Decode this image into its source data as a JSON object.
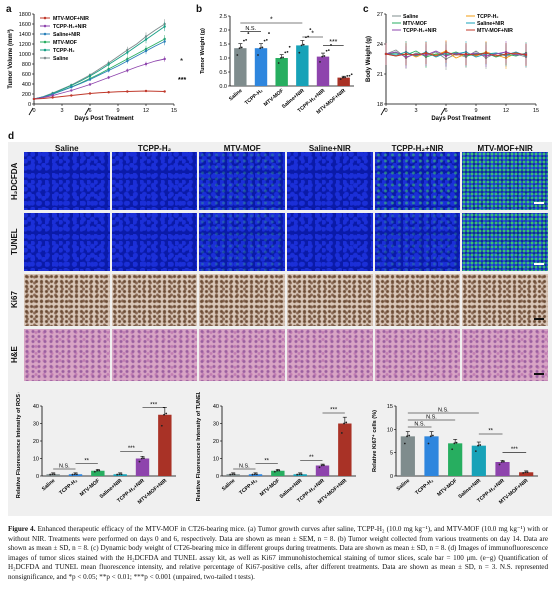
{
  "panels": {
    "a": "a",
    "b": "b",
    "c": "c",
    "d": "d",
    "e": "e",
    "f": "f",
    "g": "g"
  },
  "panel_a": {
    "ylabel": "Tumor Volume (mm³)",
    "xlabel": "Days Post Treatment",
    "yticks": [
      "0",
      "200",
      "400",
      "600",
      "800",
      "1000",
      "1200",
      "1400",
      "1600",
      "1800"
    ],
    "xticks": [
      "0",
      "3",
      "6",
      "9",
      "12",
      "15"
    ],
    "legend": [
      "MTV-MOF+NIR",
      "TCPP-H₂+NIR",
      "Saline+NIR",
      "MTV-MOF",
      "TCPP-H₂",
      "Saline"
    ],
    "sig": [
      "*",
      "***"
    ],
    "colors": [
      "#c0392b",
      "#8e44ad",
      "#2980b9",
      "#27ae60",
      "#16a085",
      "#7f8c8d"
    ]
  },
  "chart_data": [
    {
      "type": "line",
      "panel": "a",
      "x": [
        0,
        1,
        2,
        3,
        4,
        5,
        6,
        7,
        8,
        9,
        10,
        11,
        12,
        13,
        14
      ],
      "series": [
        {
          "name": "Saline",
          "values": [
            100,
            150,
            220,
            300,
            380,
            480,
            580,
            700,
            820,
            950,
            1080,
            1200,
            1350,
            1480,
            1600
          ]
        },
        {
          "name": "TCPP-H₂",
          "values": [
            100,
            145,
            210,
            290,
            370,
            460,
            560,
            670,
            790,
            910,
            1030,
            1160,
            1290,
            1420,
            1550
          ]
        },
        {
          "name": "MTV-MOF",
          "values": [
            100,
            140,
            200,
            270,
            340,
            420,
            510,
            600,
            700,
            800,
            900,
            1000,
            1100,
            1200,
            1300
          ]
        },
        {
          "name": "Saline+NIR",
          "values": [
            100,
            140,
            195,
            265,
            335,
            410,
            490,
            580,
            670,
            760,
            860,
            960,
            1060,
            1160,
            1250
          ]
        },
        {
          "name": "TCPP-H₂+NIR",
          "values": [
            100,
            130,
            170,
            220,
            270,
            330,
            390,
            460,
            530,
            600,
            670,
            740,
            800,
            860,
            900
          ]
        },
        {
          "name": "MTV-MOF+NIR",
          "values": [
            100,
            110,
            130,
            150,
            170,
            190,
            210,
            225,
            235,
            245,
            250,
            255,
            260,
            255,
            250
          ]
        }
      ],
      "ylim": [
        0,
        1800
      ],
      "xlim": [
        0,
        15
      ]
    },
    {
      "type": "bar",
      "panel": "b",
      "categories": [
        "Saline",
        "TCPP-H₂",
        "MTV-MOF",
        "Saline+NIR",
        "TCPP-H₂+NIR",
        "MTV-MOF+NIR"
      ],
      "values": [
        1.35,
        1.35,
        1.0,
        1.45,
        1.05,
        0.3
      ],
      "ylim": [
        0,
        2.5
      ]
    },
    {
      "type": "line",
      "panel": "c",
      "x": [
        0,
        1,
        2,
        3,
        4,
        5,
        6,
        7,
        8,
        9,
        10,
        11,
        12,
        13,
        14
      ],
      "series": [
        {
          "name": "Saline",
          "values": [
            23,
            23.4,
            22.6,
            23.1,
            22.8,
            23.2,
            22.5,
            23,
            22.7,
            23.3,
            22.6,
            23.1,
            22.8,
            23,
            22.7
          ]
        },
        {
          "name": "TCPP-H₂",
          "values": [
            23,
            22.8,
            23.2,
            22.7,
            23.1,
            22.9,
            23.3,
            22.6,
            23,
            22.8,
            23.2,
            22.9,
            22.6,
            23.1,
            22.9
          ]
        },
        {
          "name": "MTV-MOF",
          "values": [
            23,
            23.1,
            22.9,
            23.3,
            22.7,
            23,
            22.9,
            23.2,
            22.8,
            23,
            23.1,
            22.7,
            23,
            22.8,
            23.1
          ]
        },
        {
          "name": "Saline+NIR",
          "values": [
            23,
            22.9,
            23.2,
            22.8,
            23.2,
            22.7,
            23.1,
            23,
            23.2,
            22.7,
            23,
            23.1,
            22.9,
            23.2,
            22.8
          ]
        },
        {
          "name": "TCPP-H₂+NIR",
          "values": [
            23,
            23.2,
            22.7,
            23,
            22.9,
            23.3,
            22.8,
            23.1,
            22.9,
            23.1,
            22.8,
            23,
            23.2,
            22.9,
            23
          ]
        },
        {
          "name": "MTV-MOF+NIR",
          "values": [
            23,
            22.8,
            23,
            22.9,
            23.1,
            22.8,
            23.2,
            22.9,
            23,
            22.9,
            23.1,
            22.8,
            23,
            23.1,
            22.9
          ]
        }
      ],
      "ylim": [
        18,
        27
      ],
      "xlim": [
        0,
        15
      ]
    },
    {
      "type": "bar",
      "panel": "e",
      "categories": [
        "Saline",
        "TCPP-H₂",
        "MTV-MOF",
        "Saline+NIR",
        "TCPP-H₂+NIR",
        "MTV-MOF+NIR"
      ],
      "values": [
        1,
        1,
        3,
        1,
        10,
        35
      ],
      "ylim": [
        0,
        40
      ]
    },
    {
      "type": "bar",
      "panel": "f",
      "categories": [
        "Saline",
        "TCPP-H₂",
        "MTV-MOF",
        "Saline+NIR",
        "TCPP-H₂+NIR",
        "MTV-MOF+NIR"
      ],
      "values": [
        1,
        1,
        3,
        1,
        6,
        30
      ],
      "ylim": [
        0,
        40
      ]
    },
    {
      "type": "bar",
      "panel": "g",
      "categories": [
        "Saline",
        "TCPP-H₂",
        "MTV-MOF",
        "Saline+NIR",
        "TCPP-H₂+NIR",
        "MTV-MOF+NIR"
      ],
      "values": [
        8.5,
        8.5,
        7,
        6.5,
        3,
        0.8
      ],
      "ylim": [
        0,
        15
      ]
    }
  ],
  "panel_b": {
    "ylabel": "Tumor Weight (g)",
    "yticks": [
      "0.0",
      "0.5",
      "1.0",
      "1.5",
      "2.0",
      "2.5"
    ],
    "sig": [
      "N.S.",
      "*",
      "*",
      "***"
    ]
  },
  "panel_c": {
    "ylabel": "Body Weight (g)",
    "xlabel": "Days Post Treatment",
    "yticks": [
      "18",
      "21",
      "24",
      "27"
    ],
    "xticks": [
      "0",
      "3",
      "6",
      "9",
      "12",
      "15"
    ]
  },
  "panel_e": {
    "ylabel": "Relative Fluorescence Intensity of ROS (%)",
    "yticks": [
      "0",
      "10",
      "20",
      "30",
      "40"
    ],
    "sig": [
      "N.S.",
      "**",
      "***",
      "***"
    ]
  },
  "panel_f": {
    "ylabel": "Relative Fluorescence Intensity of TUNEL (%)",
    "yticks": [
      "0",
      "10",
      "20",
      "30",
      "40"
    ],
    "sig": [
      "N.S.",
      "**",
      "**",
      "***"
    ]
  },
  "panel_g": {
    "ylabel": "Relative Ki67⁺ cells (%)",
    "yticks": [
      "0",
      "5",
      "10",
      "15"
    ],
    "sig": [
      "N.S.",
      "N.S.",
      "N.S.",
      "**",
      "***"
    ]
  },
  "bar_colors": [
    "#7f8c8d",
    "#2e86de",
    "#27ae60",
    "#17a2b8",
    "#8e44ad",
    "#a93226"
  ],
  "grid": {
    "columns": [
      "Saline",
      "TCPP-H₂",
      "MTV-MOF",
      "Saline+NIR",
      "TCPP-H₂+NIR",
      "MTV-MOF+NIR"
    ],
    "rows": [
      "H₂DCFDA",
      "TUNEL",
      "Ki67",
      "H&E"
    ]
  },
  "caption": {
    "lead": "Figure 4.",
    "title": " Enhanced therapeutic efficacy of the MTV-MOF in CT26-bearing mice.",
    "body": " (a) Tumor growth curves after saline, TCPP-H₂ (10.0 mg kg⁻¹), and MTV-MOF (10.0 mg kg⁻¹) with or without NIR. Treatments were performed on days 0 and 6, respectively. Data are shown as mean ± SEM, n = 8. (b) Tumor weight collected from various treatments on day 14. Data are shown as mean ± SD, n = 8. (c) Dynamic body weight of CT26-bearing mice in different groups during treatments. Data are shown as mean ± SD, n = 8. (d) Images of immunofluorescence images of tumor slices stained with the H₂DCFDA and TUNEL assay kit, as well as Ki67 immunohistochemical staining of tumor slices, scale bar = 100 μm. (e−g) Quantification of H₂DCFDA and TUNEL mean fluorescence intensity, and relative percentage of Ki67-positive cells, after different treatments. Data are shown as mean ± SD, n = 3. N.S. represented nonsignificance, and *p < 0.05; **p < 0.01; ***p < 0.001 (unpaired, two-tailed t tests)."
  }
}
